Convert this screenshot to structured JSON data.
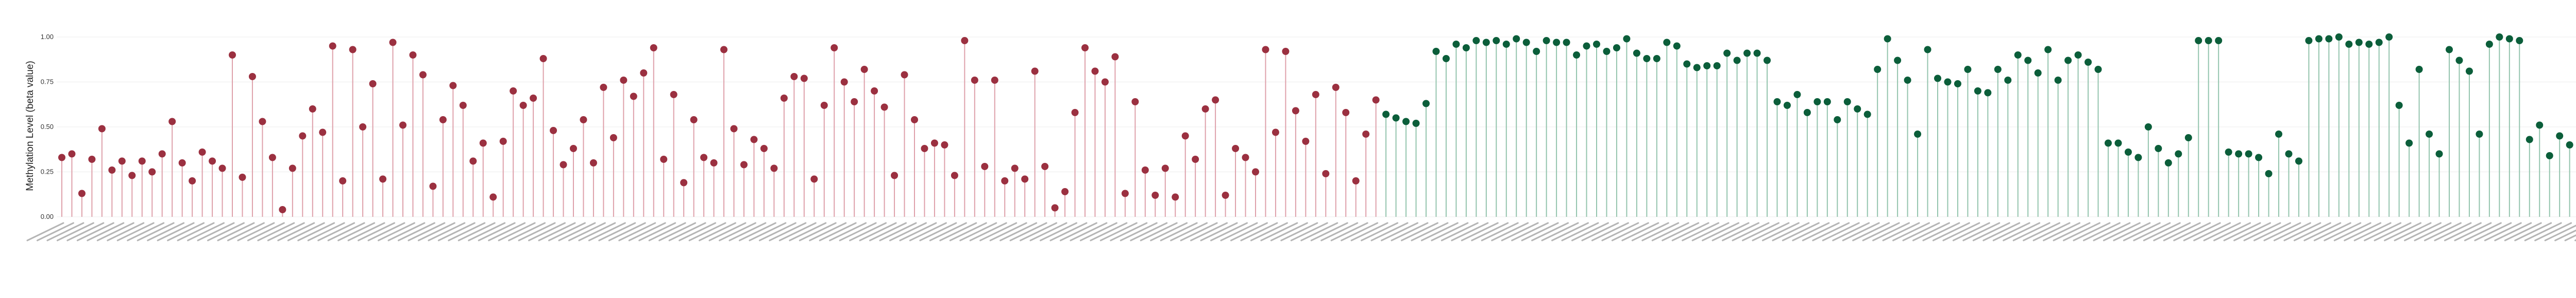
{
  "chart_data": {
    "type": "lollipop",
    "title": "",
    "xlabel": "",
    "ylabel": "Methylation Level (beta value)",
    "ylim": [
      0,
      1
    ],
    "yticks": [
      "0.00",
      "0.25",
      "0.50",
      "0.75",
      "1.00"
    ],
    "grid": true,
    "legend": "none",
    "groups": [
      {
        "color": "#9b3040",
        "stem_color": "#dea0aa",
        "values": [
          0.33,
          0.35,
          0.13,
          0.32,
          0.49,
          0.26,
          0.31,
          0.23,
          0.31,
          0.25,
          0.35,
          0.53,
          0.3,
          0.2,
          0.36,
          0.31,
          0.27,
          0.9,
          0.22,
          0.78,
          0.53,
          0.33,
          0.04,
          0.27,
          0.45,
          0.6,
          0.47,
          0.95,
          0.2,
          0.93,
          0.5,
          0.74,
          0.21,
          0.97,
          0.51,
          0.9,
          0.79,
          0.17,
          0.54,
          0.73,
          0.62,
          0.31,
          0.41,
          0.11,
          0.42,
          0.7,
          0.62,
          0.66,
          0.88,
          0.48,
          0.29,
          0.38,
          0.54,
          0.3,
          0.72,
          0.44,
          0.76,
          0.67,
          0.8,
          0.94,
          0.32,
          0.68,
          0.19,
          0.54,
          0.33,
          0.3,
          0.93,
          0.49,
          0.29,
          0.43,
          0.38,
          0.27,
          0.66,
          0.78,
          0.77,
          0.21,
          0.62,
          0.94,
          0.75,
          0.64,
          0.82,
          0.7,
          0.61,
          0.23,
          0.79,
          0.54,
          0.38,
          0.41,
          0.4,
          0.23,
          0.98,
          0.76,
          0.28,
          0.76,
          0.2,
          0.27,
          0.21,
          0.81,
          0.28,
          0.05,
          0.14,
          0.58,
          0.94,
          0.81,
          0.75,
          0.89,
          0.13,
          0.64,
          0.26,
          0.12,
          0.27,
          0.11,
          0.45,
          0.32,
          0.6,
          0.65,
          0.12,
          0.38,
          0.33,
          0.25,
          0.93,
          0.47,
          0.92,
          0.59,
          0.42,
          0.68,
          0.24,
          0.72,
          0.58,
          0.2,
          0.46,
          0.65
        ]
      },
      {
        "color": "#0b5e3a",
        "stem_color": "#93c4ad",
        "values": [
          0.57,
          0.55,
          0.53,
          0.52,
          0.63,
          0.92,
          0.88,
          0.96,
          0.94,
          0.98,
          0.97,
          0.98,
          0.96,
          0.99,
          0.97,
          0.92,
          0.98,
          0.97,
          0.97,
          0.9,
          0.95,
          0.96,
          0.92,
          0.94,
          0.99,
          0.91,
          0.88,
          0.88,
          0.97,
          0.95,
          0.85,
          0.83,
          0.84,
          0.84,
          0.91,
          0.87,
          0.91,
          0.91,
          0.87,
          0.64,
          0.62,
          0.68,
          0.58,
          0.64,
          0.64,
          0.54,
          0.64,
          0.6,
          0.57,
          0.82,
          0.99,
          0.87,
          0.76,
          0.46,
          0.93,
          0.77,
          0.75,
          0.74,
          0.82,
          0.7,
          0.69,
          0.82,
          0.76,
          0.9,
          0.87,
          0.8,
          0.93,
          0.76,
          0.87,
          0.9,
          0.86,
          0.82,
          0.41,
          0.41,
          0.36,
          0.33,
          0.5,
          0.38,
          0.3,
          0.35,
          0.44,
          0.98,
          0.98,
          0.98,
          0.36,
          0.35,
          0.35,
          0.33,
          0.24,
          0.46,
          0.35,
          0.31,
          0.98,
          0.99,
          0.99,
          1.0,
          0.96,
          0.97,
          0.96,
          0.97,
          1.0,
          0.62,
          0.41,
          0.82,
          0.46,
          0.35,
          0.93,
          0.87,
          0.81,
          0.46,
          0.96,
          1.0,
          0.99,
          0.98,
          0.43,
          0.51,
          0.34,
          0.45,
          0.4,
          0.98,
          0.96,
          0.98,
          0.99,
          0.96
        ]
      }
    ]
  }
}
